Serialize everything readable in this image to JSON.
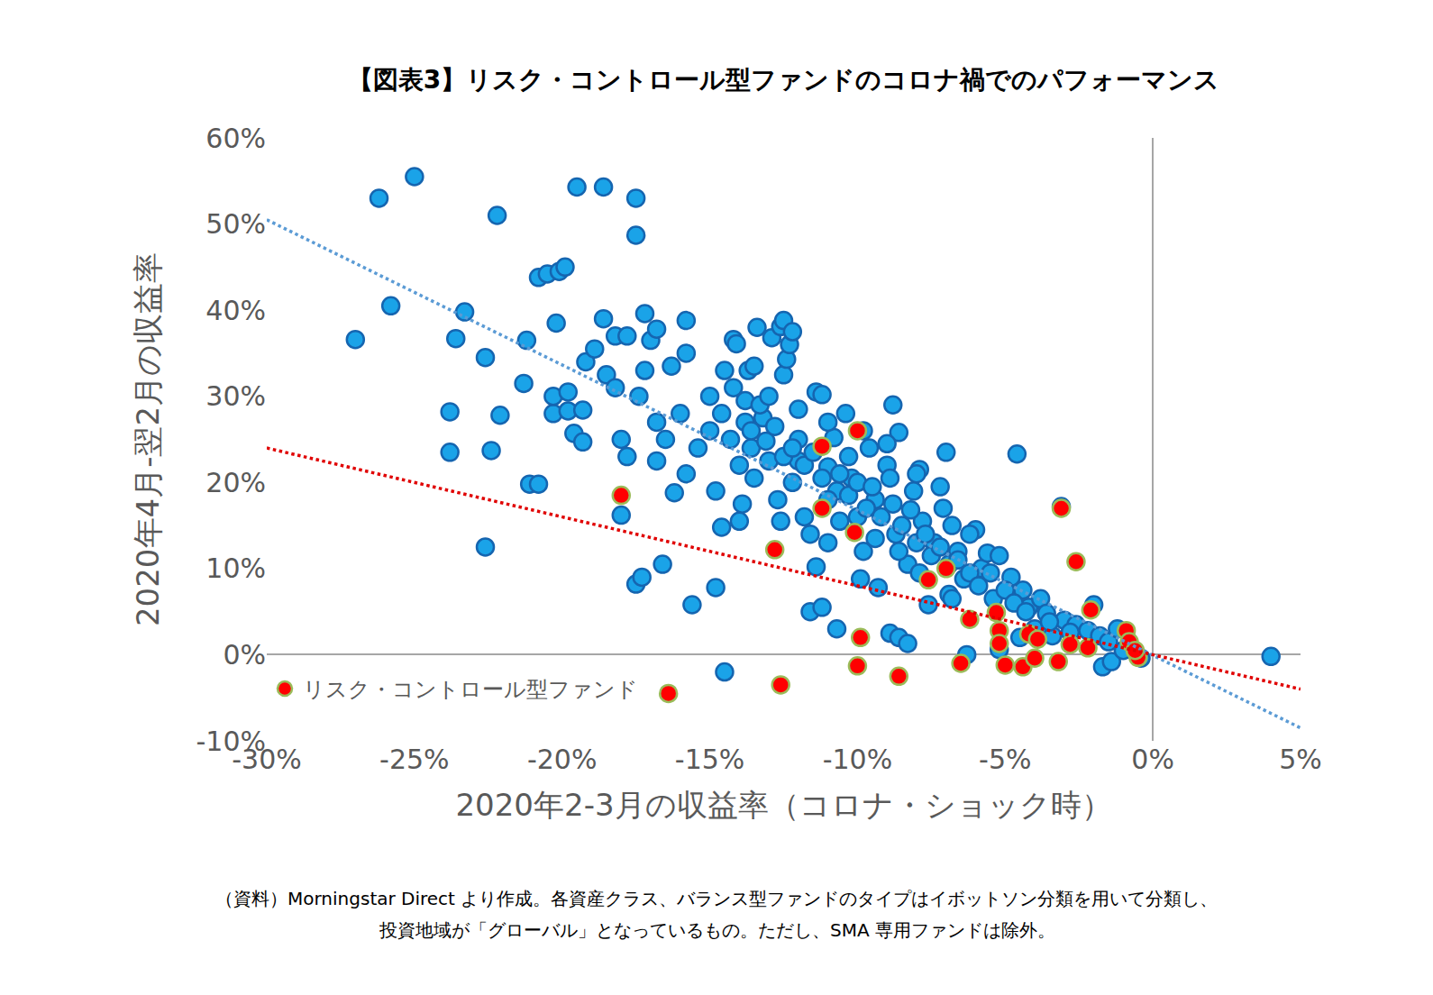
{
  "chart_data": {
    "type": "scatter",
    "title": "【図表3】リスク・コントロール型ファンドのコロナ禍でのパフォーマンス",
    "x_label": "2020年2-3月の収益率（コロナ・ショック時）",
    "y_label": "2020年4月-翌2月の収益率",
    "notes": [
      "（資料）Morningstar Direct より作成。各資産クラス、バランス型ファンドのタイプはイボットソン分類を用いて分類し、",
      "投資地域が「グローバル」となっているもの。ただし、SMA 専用ファンドは除外。"
    ],
    "xlim": [
      -30,
      5
    ],
    "ylim": [
      -10,
      60
    ],
    "xticks": [
      {
        "value": -30,
        "label": "-30%"
      },
      {
        "value": -25,
        "label": "-25%"
      },
      {
        "value": -20,
        "label": "-20%"
      },
      {
        "value": -15,
        "label": "-15%"
      },
      {
        "value": -10,
        "label": "-10%"
      },
      {
        "value": -5,
        "label": "-5%"
      },
      {
        "value": 0,
        "label": "0%"
      },
      {
        "value": 5,
        "label": "5%"
      }
    ],
    "yticks": [
      {
        "value": -10,
        "label": "-10%"
      },
      {
        "value": 0,
        "label": "0%"
      },
      {
        "value": 10,
        "label": "10%"
      },
      {
        "value": 20,
        "label": "20%"
      },
      {
        "value": 30,
        "label": "30%"
      },
      {
        "value": 40,
        "label": "40%"
      },
      {
        "value": 50,
        "label": "50%"
      },
      {
        "value": 60,
        "label": "60%"
      }
    ],
    "grid": false,
    "legend": "lower left",
    "series": [
      {
        "type": "scatter",
        "marker": "circle",
        "color": "#1aa3e8",
        "x": [
          -27,
          -26.2,
          -25.8,
          -25,
          -23.8,
          -23.8,
          -23.6,
          -23.3,
          -22.6,
          -22.6,
          -22.4,
          -22.2,
          -22.1,
          -21.3,
          -21.2,
          -21.1,
          -20.8,
          -20.8,
          -20.5,
          -20.3,
          -20.3,
          -20.2,
          -20.1,
          -19.9,
          -19.8,
          -19.8,
          -19.6,
          -19.5,
          -19.3,
          -19.3,
          -19.2,
          -18.9,
          -18.6,
          -18.5,
          -18.2,
          -18.2,
          -18,
          -18,
          -17.8,
          -17.8,
          -18.6,
          -17.5,
          -17.5,
          -17.5,
          -17.3,
          -17.2,
          -17.2,
          -17,
          -16.8,
          -16.8,
          -16.6,
          -16.2,
          -16,
          -16.3,
          -15.8,
          -15.8,
          -15.6,
          -15.4,
          -15,
          -14.8,
          -14.6,
          -14.5,
          -14.2,
          -14.1,
          -14,
          -13.8,
          -13.7,
          -13.6,
          -13.5,
          -13.5,
          -13.4,
          -13.2,
          -13,
          -12.9,
          -12.7,
          -12.6,
          -12.5,
          -12.5,
          -12.4,
          -12.3,
          -12.2,
          -12,
          -12,
          -12.2,
          -11.8,
          -11.6,
          -11.4,
          -11.4,
          -11.2,
          -11.2,
          -11,
          -11,
          -10.8,
          -10.7,
          -10.7,
          -10.4,
          -10.3,
          -10.2,
          -10,
          -9.9,
          -9.8,
          -9.6,
          -9.4,
          -9.3,
          -9,
          -8.9,
          -8.9,
          -8.8,
          -8.7,
          -8.6,
          -8.6,
          -8.3,
          -8.3,
          -8.1,
          -7.9,
          -7.8,
          -7.6,
          -7.4,
          -7.2,
          -7,
          -6.9,
          -6.8,
          -6.6,
          -6.4,
          -6.3,
          -6,
          -5.8,
          -5.6,
          -5.4,
          -5.2,
          -4.8,
          -4.6,
          -4.4,
          -4.2,
          -4,
          -3.8,
          -3.6,
          -3.1,
          -3,
          -2.6,
          -2.2,
          -2,
          -1.8,
          -1.7,
          -1.5,
          -1.4,
          -1.2,
          -1,
          -0.4,
          4,
          -14.5,
          -5.2,
          -4.5,
          -3.4,
          -15,
          -14.6,
          -14.3,
          -14,
          -13.8,
          -13.6,
          -13.3,
          -13.1,
          -12.8,
          -12.5,
          -12.2,
          -11.8,
          -11.5,
          -11.2,
          -11,
          -10.6,
          -10.3,
          -10,
          -9.7,
          -9.5,
          -9.2,
          -8.8,
          -8.5,
          -8.2,
          -8,
          -7.7,
          -7.5,
          -7.2,
          -6.9,
          -6.6,
          -6.2,
          -5.9,
          -5.5,
          -5,
          -4.7,
          -4.3,
          -3.5,
          -2.8,
          -16.5,
          -16.8,
          -17.4,
          -15.8,
          -14.8,
          -13.9,
          -12.6,
          -11.6,
          -10.6,
          -9.4,
          -8.6,
          -7.9,
          -6.8,
          -14.2,
          -13,
          -12,
          -11,
          -9.8,
          -9,
          -8,
          -7.1,
          -6.2
        ],
        "values": [
          36.6,
          53,
          40.5,
          55.5,
          28.2,
          23.5,
          36.7,
          39.8,
          34.5,
          12.5,
          23.7,
          51,
          27.8,
          31.5,
          36.5,
          19.8,
          19.8,
          43.8,
          44.2,
          28,
          30,
          38.5,
          44.5,
          45,
          30.5,
          28.3,
          25.7,
          54.3,
          24.7,
          28.4,
          34,
          35.5,
          39,
          32.5,
          31,
          37,
          16.2,
          25,
          37,
          23,
          54.3,
          53,
          48.7,
          8.2,
          9,
          39.6,
          33,
          36.5,
          37.8,
          22.5,
          10.5,
          18.8,
          28,
          33.5,
          38.8,
          35,
          5.8,
          24,
          30,
          7.8,
          14.8,
          33,
          36.6,
          36.1,
          15.5,
          29.5,
          33,
          24,
          20.5,
          33.5,
          38,
          27.5,
          22.5,
          36.8,
          18,
          38.1,
          38.8,
          32.5,
          34.3,
          36,
          37.5,
          25,
          22.5,
          20,
          16,
          5,
          10.2,
          30.5,
          5.5,
          30.2,
          21.8,
          13,
          25.2,
          19,
          3,
          28,
          23,
          20.5,
          16,
          8.8,
          12,
          24,
          18,
          7.8,
          22,
          2.5,
          20.5,
          29,
          14,
          25.8,
          2,
          10.5,
          1.3,
          19,
          21.5,
          15.5,
          5.8,
          13,
          19.5,
          23.5,
          7,
          15,
          12,
          8.8,
          0,
          14.5,
          10,
          11.8,
          6.5,
          11.5,
          9,
          23.3,
          7.5,
          5.5,
          3,
          6.5,
          4.8,
          17.2,
          4,
          3.5,
          2.8,
          5.8,
          2.2,
          -1.4,
          1.5,
          -0.8,
          3,
          0.5,
          -0.4,
          -0.2,
          -2,
          0.6,
          2,
          2.2,
          26,
          28,
          25,
          22,
          27,
          26,
          29,
          24.8,
          26.5,
          23,
          24,
          22,
          23.5,
          20.5,
          18,
          21,
          18.5,
          20,
          17,
          19.5,
          16,
          17.5,
          15,
          16.8,
          13,
          14,
          11.5,
          12.5,
          10.5,
          11,
          9.5,
          8,
          9.5,
          7.5,
          6,
          5,
          3.8,
          2.6,
          25,
          27,
          30,
          21,
          19,
          17.5,
          15.5,
          14,
          15.5,
          13.5,
          12,
          9.5,
          6.5,
          31,
          30,
          28.5,
          27,
          26,
          24.5,
          21,
          17,
          14
        ]
      },
      {
        "type": "scatter",
        "marker": "circle",
        "color": "#ff0000",
        "name": "リスク・コントロール型ファンド",
        "x": [
          -18,
          -11.2,
          -10,
          -11.2,
          -12.8,
          -10.1,
          -9.9,
          -10,
          -8.6,
          -12.6,
          -16.4,
          -7.6,
          -7,
          -6.5,
          -6.2,
          -5.3,
          -5.2,
          -5.2,
          -5,
          -4.4,
          -4.2,
          -3.9,
          -4,
          -3.2,
          -3.1,
          -2.8,
          -2.6,
          -2.1,
          -2.2,
          -0.9,
          -0.8,
          -0.5,
          -0.6
        ],
        "values": [
          18.5,
          24.2,
          26,
          17,
          12.2,
          14.2,
          2,
          -1.3,
          -2.5,
          -3.5,
          -4.5,
          8.7,
          10,
          -1,
          4.1,
          4.9,
          2.8,
          1.3,
          -1.2,
          -1.4,
          2.4,
          1.8,
          -0.4,
          -0.8,
          17,
          1.2,
          10.8,
          5.2,
          0.8,
          2.8,
          1.5,
          -0.3,
          0.5
        ]
      },
      {
        "type": "line",
        "line_style": "dotted",
        "color": "#5b9bd5",
        "x": [
          -30,
          5
        ],
        "values": [
          50.5,
          -8.5
        ]
      },
      {
        "type": "line",
        "line_style": "dotted",
        "color": "#e00000",
        "x": [
          -30,
          5
        ],
        "values": [
          24,
          -4
        ]
      }
    ]
  }
}
